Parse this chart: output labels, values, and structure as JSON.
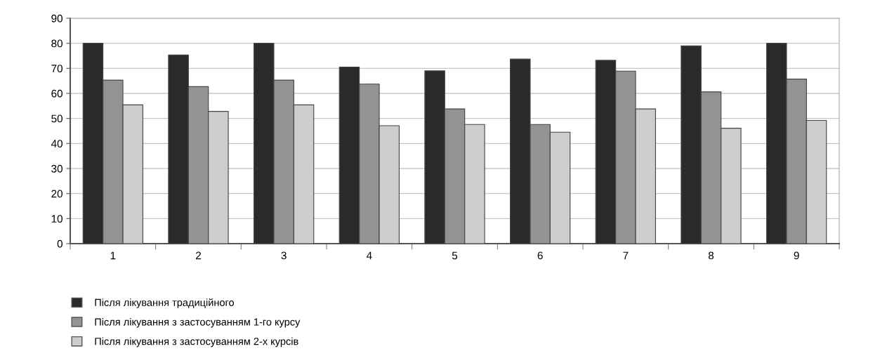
{
  "chart_data": {
    "type": "bar",
    "categories": [
      "1",
      "2",
      "3",
      "4",
      "5",
      "6",
      "7",
      "8",
      "9"
    ],
    "series": [
      {
        "name": "Після лікування традиційного",
        "color": "#2a2a2a",
        "values": [
          80,
          75.3,
          80,
          70.5,
          69,
          73.7,
          73.2,
          79,
          80
        ]
      },
      {
        "name": "Після лікування з застосуванням 1-го курсу",
        "color": "#939393",
        "values": [
          65.3,
          62.7,
          65.3,
          63.7,
          53.8,
          47.6,
          68.9,
          60.6,
          65.7
        ]
      },
      {
        "name": "Після лікування з застосуванням 2-х курсів",
        "color": "#cdcdcd",
        "values": [
          55.4,
          52.8,
          55.4,
          47.1,
          47.6,
          44.5,
          53.8,
          46.1,
          49.2
        ]
      }
    ],
    "ylim": [
      0,
      90
    ],
    "yticks": [
      0,
      10,
      20,
      30,
      40,
      50,
      60,
      70,
      80,
      90
    ],
    "grid": "y",
    "legend": "bottom left"
  }
}
